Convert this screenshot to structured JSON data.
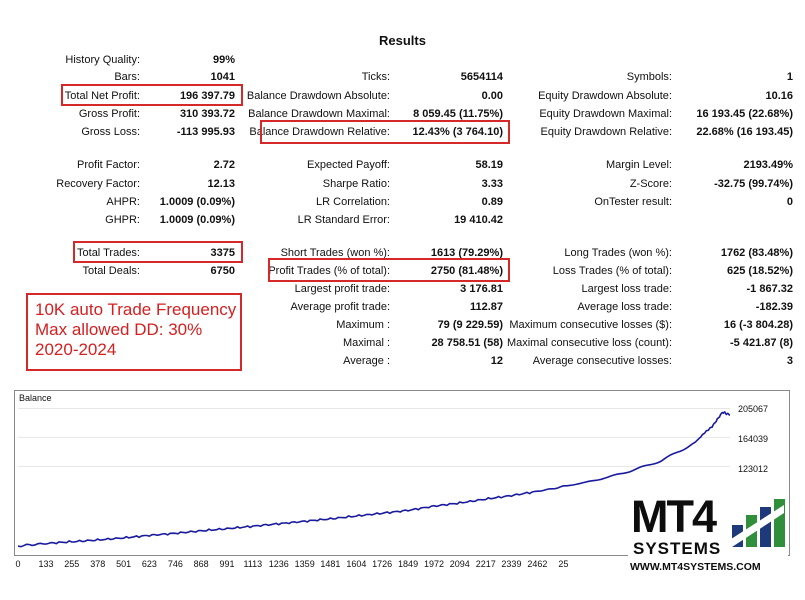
{
  "results_title": "Results",
  "col1": [
    {
      "label": "History Quality:",
      "value": "99%"
    },
    {
      "label": "Bars:",
      "value": "1041"
    },
    {
      "label": "Total Net Profit:",
      "value": "196 397.79"
    },
    {
      "label": "Gross Profit:",
      "value": "310 393.72"
    },
    {
      "label": "Gross Loss:",
      "value": "-113 995.93"
    },
    {
      "label": "Profit Factor:",
      "value": "2.72"
    },
    {
      "label": "Recovery Factor:",
      "value": "12.13"
    },
    {
      "label": "AHPR:",
      "value": "1.0009 (0.09%)"
    },
    {
      "label": "GHPR:",
      "value": "1.0009 (0.09%)"
    },
    {
      "label": "Total Trades:",
      "value": "3375"
    },
    {
      "label": "Total Deals:",
      "value": "6750"
    }
  ],
  "col2": [
    {
      "label": "Ticks:",
      "value": "5654114"
    },
    {
      "label": "Balance Drawdown Absolute:",
      "value": "0.00"
    },
    {
      "label": "Balance Drawdown Maximal:",
      "value": "8 059.45 (11.75%)"
    },
    {
      "label": "Balance Drawdown Relative:",
      "value": "12.43% (3 764.10)"
    },
    {
      "label": "Expected Payoff:",
      "value": "58.19"
    },
    {
      "label": "Sharpe Ratio:",
      "value": "3.33"
    },
    {
      "label": "LR Correlation:",
      "value": "0.89"
    },
    {
      "label": "LR Standard Error:",
      "value": "19 410.42"
    },
    {
      "label": "Short Trades (won %):",
      "value": "1613 (79.29%)"
    },
    {
      "label": "Profit Trades (% of total):",
      "value": "2750 (81.48%)"
    },
    {
      "label": "Largest profit trade:",
      "value": "3 176.81"
    },
    {
      "label": "Average profit trade:",
      "value": "112.87"
    },
    {
      "label": "Maximum :",
      "value": "79 (9 229.59)"
    },
    {
      "label": "Maximal :",
      "value": "28 758.51 (58)"
    },
    {
      "label": "Average :",
      "value": "12"
    }
  ],
  "col3": [
    {
      "label": "Symbols:",
      "value": "1"
    },
    {
      "label": "Equity Drawdown Absolute:",
      "value": "10.16"
    },
    {
      "label": "Equity Drawdown Maximal:",
      "value": "16 193.45 (22.68%)"
    },
    {
      "label": "Equity Drawdown Relative:",
      "value": "22.68% (16 193.45)"
    },
    {
      "label": "Margin Level:",
      "value": "2193.49%"
    },
    {
      "label": "Z-Score:",
      "value": "-32.75 (99.74%)"
    },
    {
      "label": "OnTester result:",
      "value": "0"
    },
    {
      "label": "Long Trades (won %):",
      "value": "1762 (83.48%)"
    },
    {
      "label": "Loss Trades (% of total):",
      "value": "625 (18.52%)"
    },
    {
      "label": "Largest loss trade:",
      "value": "-1 867.32"
    },
    {
      "label": "Average loss trade:",
      "value": "-182.39"
    },
    {
      "label": "Maximum consecutive losses ($):",
      "value": "16 (-3 804.28)"
    },
    {
      "label": "Maximal consecutive loss (count):",
      "value": "-5 421.87 (8)"
    },
    {
      "label": "Average consecutive losses:",
      "value": "3"
    }
  ],
  "promo": {
    "line1": "10K auto Trade Frequency",
    "line2": "Max allowed DD: 30%",
    "line3": "2020-2024"
  },
  "chart_data": {
    "type": "line",
    "title": "Balance",
    "x_ticks": [
      "0",
      "133",
      "255",
      "378",
      "501",
      "623",
      "746",
      "868",
      "991",
      "1113",
      "1236",
      "1359",
      "1481",
      "1604",
      "1726",
      "1849",
      "1972",
      "2094",
      "2217",
      "2339",
      "2462",
      "25"
    ],
    "y_ticks": [
      "205067",
      "164039",
      "123012"
    ],
    "ylim": [
      0,
      220000
    ],
    "series": [
      {
        "values_x": [
          0,
          133,
          255,
          378,
          501,
          623,
          746,
          868,
          991,
          1113,
          1236,
          1359,
          1481,
          1604,
          1726,
          1849,
          1972,
          2094,
          2217,
          2339,
          2462,
          2600,
          2750,
          2900,
          3050,
          3200,
          3290,
          3340,
          3375
        ],
        "values_y": [
          10000,
          13500,
          16000,
          18500,
          21500,
          25000,
          28000,
          31500,
          34500,
          38000,
          41500,
          45000,
          48500,
          52500,
          56500,
          60500,
          66500,
          71000,
          76500,
          81500,
          87500,
          95000,
          104000,
          116000,
          131000,
          155000,
          180000,
          200000,
          196000
        ]
      }
    ],
    "line_color": "#1a1a9e"
  },
  "logo": {
    "brand": "MT4",
    "sub": "SYSTEMS",
    "site": "WWW.MT4SYSTEMS.COM"
  }
}
